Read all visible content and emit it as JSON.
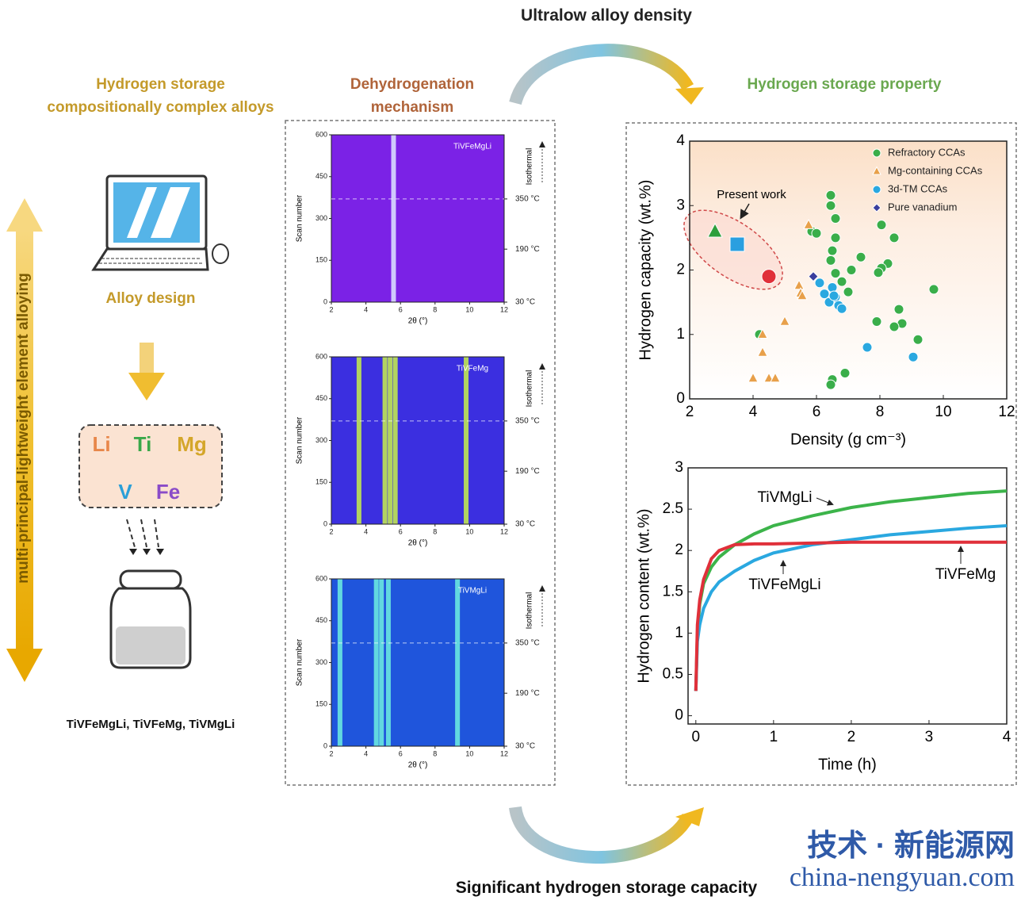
{
  "title_top": "Ultralow alloy density",
  "title_bottom": "Significant hydrogen storage capacity",
  "left": {
    "heading": "Hydrogen storage compositionally complex alloys",
    "step": "Alloy design",
    "elements": [
      {
        "symbol": "Li",
        "color": "#e8874a"
      },
      {
        "symbol": "Ti",
        "color": "#3aa84a"
      },
      {
        "symbol": "Mg",
        "color": "#d4a62a"
      },
      {
        "symbol": "V",
        "color": "#2a9fd8"
      },
      {
        "symbol": "Fe",
        "color": "#8a4bc8"
      }
    ],
    "products": "TiVFeMgLi, TiVFeMg, TiVMgLi",
    "side_label": "multi-principal-lightweight element alloying"
  },
  "middle": {
    "heading": "Dehydrogenation mechanism",
    "heatmaps": [
      {
        "sample": "TiVFeMgLi",
        "xlabel": "2θ (°)",
        "ylabel": "Scan number",
        "stage": "Isothermal",
        "xlim": [
          2,
          12
        ],
        "xticks": [
          2,
          4,
          6,
          8,
          10,
          12
        ],
        "ylim": [
          0,
          600
        ],
        "yticks": [
          0,
          150,
          300,
          450,
          600
        ],
        "y2ticks": [
          {
            "value": 0,
            "label": "30 °C"
          },
          {
            "value": 190,
            "label": "190 °C"
          },
          {
            "value": 370,
            "label": "350 °C"
          }
        ],
        "peaks": [
          5.6
        ],
        "color": "#7b22e6",
        "peak_color": "#dfe6ff"
      },
      {
        "sample": "TiVFeMg",
        "xlabel": "2θ (°)",
        "ylabel": "Scan number",
        "stage": "Isothermal",
        "xlim": [
          2,
          12
        ],
        "xticks": [
          2,
          4,
          6,
          8,
          10,
          12
        ],
        "ylim": [
          0,
          600
        ],
        "yticks": [
          0,
          150,
          300,
          450,
          600
        ],
        "y2ticks": [
          {
            "value": 0,
            "label": "30 °C"
          },
          {
            "value": 190,
            "label": "190 °C"
          },
          {
            "value": 370,
            "label": "350 °C"
          }
        ],
        "peaks": [
          3.6,
          5.1,
          5.4,
          5.7,
          9.8
        ],
        "color": "#3b2fe0",
        "peak_color": "#c8f04a"
      },
      {
        "sample": "TiVMgLi",
        "xlabel": "2θ (°)",
        "ylabel": "Scan number",
        "stage": "Isothermal",
        "xlim": [
          2,
          12
        ],
        "xticks": [
          2,
          4,
          6,
          8,
          10,
          12
        ],
        "ylim": [
          0,
          600
        ],
        "yticks": [
          0,
          150,
          300,
          450,
          600
        ],
        "y2ticks": [
          {
            "value": 0,
            "label": "30 °C"
          },
          {
            "value": 190,
            "label": "190 °C"
          },
          {
            "value": 370,
            "label": "350 °C"
          }
        ],
        "peaks": [
          2.5,
          4.6,
          4.9,
          5.3,
          9.3
        ],
        "color": "#1f55dc",
        "peak_color": "#6ff0e0"
      }
    ]
  },
  "right": {
    "heading": "Hydrogen storage property"
  },
  "chart_data": [
    {
      "type": "scatter",
      "xlabel": "Density (g cm⁻³)",
      "ylabel": "Hydrogen capacity (wt.%)",
      "xlim": [
        2,
        12
      ],
      "xticks": [
        2,
        4,
        6,
        8,
        10,
        12
      ],
      "ylim": [
        0,
        4
      ],
      "yticks": [
        0,
        1,
        2,
        3,
        4
      ],
      "legend": "top-right",
      "series": [
        {
          "name": "Refractory CCAs",
          "color": "#3aae4a",
          "marker": "circle",
          "x": [
            6.45,
            6.45,
            6.6,
            5.85,
            6.0,
            6.6,
            6.5,
            8.05,
            8.45,
            7.4,
            6.45,
            8.25,
            8.05,
            7.95,
            7.1,
            6.6,
            6.8,
            7.0,
            9.7,
            8.6,
            7.9,
            8.7,
            8.45,
            4.2,
            9.2,
            6.9,
            6.5,
            6.45
          ],
          "values": [
            3.16,
            3.0,
            2.8,
            2.6,
            2.57,
            2.5,
            2.3,
            2.7,
            2.5,
            2.2,
            2.15,
            2.1,
            2.03,
            1.96,
            2.0,
            1.95,
            1.82,
            1.66,
            1.7,
            1.39,
            1.2,
            1.17,
            1.12,
            1.0,
            0.92,
            0.4,
            0.3,
            0.22
          ]
        },
        {
          "name": "Mg-containing CCAs",
          "color": "#e8a04a",
          "marker": "triangle",
          "x": [
            5.75,
            5.45,
            5.5,
            5.55,
            5.0,
            4.3,
            4.3,
            4.0,
            4.5,
            4.7
          ],
          "values": [
            2.7,
            1.76,
            1.64,
            1.6,
            1.2,
            1.0,
            0.72,
            0.32,
            0.32,
            0.32
          ]
        },
        {
          "name": "3d-TM CCAs",
          "color": "#2aa8e0",
          "marker": "circle",
          "x": [
            6.25,
            6.5,
            6.6,
            6.4,
            6.7,
            6.8,
            6.55,
            7.6,
            9.05,
            6.1
          ],
          "values": [
            1.63,
            1.73,
            1.58,
            1.5,
            1.45,
            1.4,
            1.6,
            0.8,
            0.65,
            1.8
          ]
        },
        {
          "name": "Pure vanadium",
          "color": "#3a3f9e",
          "marker": "diamond",
          "x": [
            5.9
          ],
          "values": [
            1.9
          ]
        }
      ],
      "annotation": "Present work",
      "present_work": {
        "x": [
          2.8,
          3.5,
          4.5
        ],
        "values": [
          2.6,
          2.4,
          1.9
        ],
        "colors": [
          "#2e9e3c",
          "#2a9fe0",
          "#e0303a"
        ],
        "markers": [
          "triangle",
          "square",
          "circle"
        ]
      }
    },
    {
      "type": "line",
      "xlabel": "Time (h)",
      "ylabel": "Hydrogen content (wt.%)",
      "xlim": [
        -0.1,
        4
      ],
      "xticks": [
        0,
        1,
        2,
        3,
        4
      ],
      "ylim": [
        -0.1,
        3
      ],
      "yticks": [
        0,
        0.5,
        1,
        1.5,
        2,
        2.5,
        3
      ],
      "x": [
        0,
        0.02,
        0.05,
        0.1,
        0.2,
        0.3,
        0.5,
        0.75,
        1,
        1.5,
        2,
        2.5,
        3,
        3.5,
        4
      ],
      "series": [
        {
          "name": "TiVMgLi",
          "color": "#3cb44a",
          "values": [
            0.3,
            1.0,
            1.35,
            1.6,
            1.8,
            1.92,
            2.07,
            2.2,
            2.3,
            2.42,
            2.52,
            2.59,
            2.64,
            2.69,
            2.72
          ]
        },
        {
          "name": "TiVFeMgLi",
          "color": "#2aa8e0",
          "values": [
            0.3,
            0.9,
            1.1,
            1.3,
            1.5,
            1.62,
            1.75,
            1.88,
            1.97,
            2.07,
            2.13,
            2.19,
            2.23,
            2.27,
            2.3
          ]
        },
        {
          "name": "TiVFeMg",
          "color": "#e0303a",
          "values": [
            0.3,
            1.1,
            1.4,
            1.65,
            1.9,
            2.0,
            2.07,
            2.08,
            2.08,
            2.09,
            2.1,
            2.1,
            2.1,
            2.1,
            2.1
          ]
        }
      ]
    }
  ],
  "watermark": {
    "cn": "技术 · 新能源网",
    "url": "china-nengyuan.com"
  }
}
